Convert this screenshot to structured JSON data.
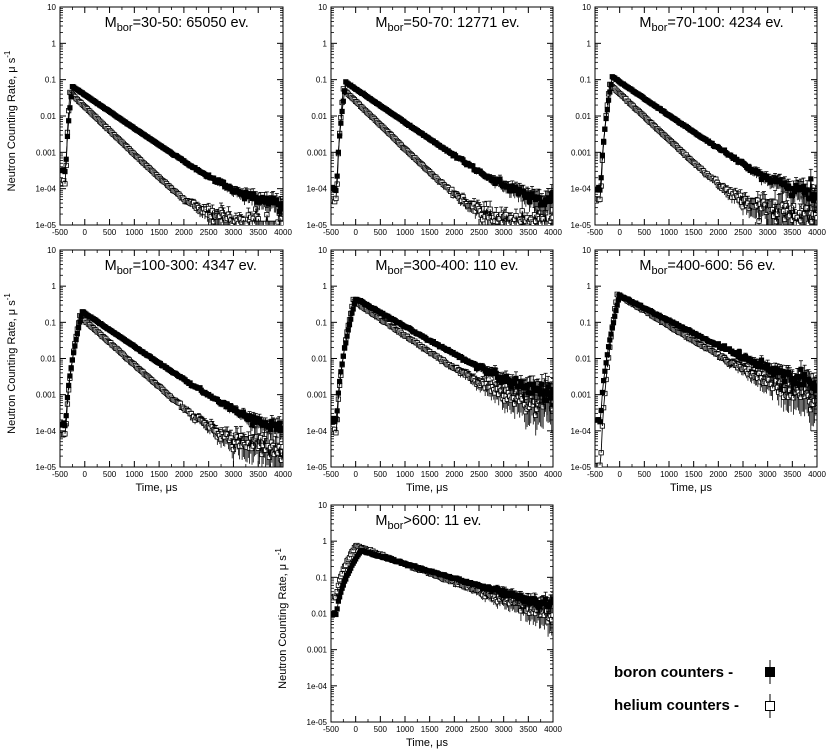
{
  "chart_data": [
    {
      "type": "scatter",
      "title": {
        "sub": "bor",
        "pre": "M",
        "post": "=30-50: 65050 ev."
      },
      "ylabel": "Neutron Counting Rate,  μ s",
      "ylabel_sup": "-1",
      "xlabel": "",
      "yscale": "log",
      "ylim": [
        1e-05,
        10
      ],
      "xlim": [
        -500,
        4000
      ],
      "x_ticks": [
        "-500",
        "0",
        "500",
        "1000",
        "1500",
        "2000",
        "2500",
        "3000",
        "3500",
        "4000"
      ],
      "y_ticks": [
        "1e-05",
        "1e-04",
        "0.001",
        "0.01",
        "0.1",
        "1",
        "10"
      ],
      "series": [
        {
          "marker": "filled-square",
          "peak_x": -250,
          "peak": 0.065,
          "tau": 470,
          "floor": 3e-05,
          "start": 0.0003,
          "noise": 0.15
        },
        {
          "marker": "open-square",
          "peak_x": -300,
          "peak": 0.045,
          "tau": 330,
          "floor": 1.2e-05,
          "start": 0.00015,
          "noise": 0.2
        }
      ]
    },
    {
      "type": "scatter",
      "title": {
        "sub": "bor",
        "pre": "M",
        "post": "=50-70: 12771 ev."
      },
      "ylabel": "",
      "ylabel_sup": "",
      "xlabel": "",
      "yscale": "log",
      "ylim": [
        1e-05,
        10
      ],
      "xlim": [
        -500,
        4000
      ],
      "x_ticks": [
        "-500",
        "0",
        "500",
        "1000",
        "1500",
        "2000",
        "2500",
        "3000",
        "3500",
        "4000"
      ],
      "y_ticks": [
        "1e-05",
        "1e-04",
        "0.001",
        "0.01",
        "0.1",
        "1",
        "10"
      ],
      "series": [
        {
          "marker": "filled-square",
          "peak_x": -200,
          "peak": 0.085,
          "tau": 470,
          "floor": 3e-05,
          "start": 0.0001,
          "noise": 0.2
        },
        {
          "marker": "open-square",
          "peak_x": -250,
          "peak": 0.055,
          "tau": 330,
          "floor": 1.2e-05,
          "start": 5e-05,
          "noise": 0.25
        }
      ]
    },
    {
      "type": "scatter",
      "title": {
        "sub": "bor",
        "pre": "M",
        "post": "=70-100: 4234 ev."
      },
      "ylabel": "",
      "ylabel_sup": "",
      "xlabel": "",
      "yscale": "log",
      "ylim": [
        1e-05,
        10
      ],
      "xlim": [
        -500,
        4000
      ],
      "x_ticks": [
        "-500",
        "0",
        "500",
        "1000",
        "1500",
        "2000",
        "2500",
        "3000",
        "3500",
        "4000"
      ],
      "y_ticks": [
        "1e-05",
        "1e-04",
        "0.001",
        "0.01",
        "0.1",
        "1",
        "10"
      ],
      "series": [
        {
          "marker": "filled-square",
          "peak_x": -150,
          "peak": 0.12,
          "tau": 470,
          "floor": 5e-05,
          "start": 0.0001,
          "noise": 0.25
        },
        {
          "marker": "open-square",
          "peak_x": -200,
          "peak": 0.075,
          "tau": 340,
          "floor": 2e-05,
          "start": 5e-05,
          "noise": 0.3
        }
      ]
    },
    {
      "type": "scatter",
      "title": {
        "sub": "bor",
        "pre": "M",
        "post": "=100-300: 4347 ev."
      },
      "ylabel": "Neutron Counting Rate,  μ s",
      "ylabel_sup": "-1",
      "xlabel": "Time,  μs",
      "yscale": "log",
      "ylim": [
        1e-05,
        10
      ],
      "xlim": [
        -500,
        4000
      ],
      "x_ticks": [
        "-500",
        "0",
        "500",
        "1000",
        "1500",
        "2000",
        "2500",
        "3000",
        "3500",
        "4000"
      ],
      "y_ticks": [
        "1e-05",
        "1e-04",
        "0.001",
        "0.01",
        "0.1",
        "1",
        "10"
      ],
      "series": [
        {
          "marker": "filled-square",
          "peak_x": -50,
          "peak": 0.2,
          "tau": 470,
          "floor": 8e-05,
          "start": 0.00015,
          "noise": 0.2
        },
        {
          "marker": "open-square",
          "peak_x": -100,
          "peak": 0.15,
          "tau": 355,
          "floor": 3e-05,
          "start": 8e-05,
          "noise": 0.3
        }
      ]
    },
    {
      "type": "scatter",
      "title": {
        "sub": "bor",
        "pre": "M",
        "post": "=300-400: 110 ev."
      },
      "ylabel": "",
      "ylabel_sup": "",
      "xlabel": "Time,  μs",
      "yscale": "log",
      "ylim": [
        1e-05,
        10
      ],
      "xlim": [
        -500,
        4000
      ],
      "x_ticks": [
        "-500",
        "0",
        "500",
        "1000",
        "1500",
        "2000",
        "2500",
        "3000",
        "3500",
        "4000"
      ],
      "y_ticks": [
        "1e-05",
        "1e-04",
        "0.001",
        "0.01",
        "0.1",
        "1",
        "10"
      ],
      "series": [
        {
          "marker": "filled-square",
          "peak_x": 0,
          "peak": 0.45,
          "tau": 560,
          "floor": 0.0007,
          "start": 0.0002,
          "noise": 0.35
        },
        {
          "marker": "open-square",
          "peak_x": -50,
          "peak": 0.4,
          "tau": 470,
          "floor": 0.0004,
          "start": 0.0001,
          "noise": 0.5
        }
      ]
    },
    {
      "type": "scatter",
      "title": {
        "sub": "bor",
        "pre": "M",
        "post": "=400-600: 56 ev."
      },
      "ylabel": "",
      "ylabel_sup": "",
      "xlabel": "Time,  μs",
      "yscale": "log",
      "ylim": [
        1e-05,
        10
      ],
      "xlim": [
        -500,
        4000
      ],
      "x_ticks": [
        "-500",
        "0",
        "500",
        "1000",
        "1500",
        "2000",
        "2500",
        "3000",
        "3500",
        "4000"
      ],
      "y_ticks": [
        "1e-05",
        "1e-04",
        "0.001",
        "0.01",
        "0.1",
        "1",
        "10"
      ],
      "series": [
        {
          "marker": "filled-square",
          "peak_x": 0,
          "peak": 0.55,
          "tau": 620,
          "floor": 0.0012,
          "start": 0.0002,
          "noise": 0.35
        },
        {
          "marker": "open-square",
          "peak_x": -50,
          "peak": 0.6,
          "tau": 520,
          "floor": 0.0006,
          "start": 1e-05,
          "noise": 0.5
        }
      ]
    },
    {
      "type": "scatter",
      "title": {
        "sub": "bor",
        "pre": "M",
        "post": ">600: 11 ev."
      },
      "ylabel": "Neutron Counting Rate,  μ s",
      "ylabel_sup": "-1",
      "xlabel": "Time,  μs",
      "yscale": "log",
      "ylim": [
        1e-05,
        10
      ],
      "xlim": [
        -500,
        4000
      ],
      "x_ticks": [
        "-500",
        "0",
        "500",
        "1000",
        "1500",
        "2000",
        "2500",
        "3000",
        "3500",
        "4000"
      ],
      "y_ticks": [
        "1e-05",
        "1e-04",
        "0.001",
        "0.01",
        "0.1",
        "1",
        "10"
      ],
      "series": [
        {
          "marker": "filled-square",
          "peak_x": 100,
          "peak": 0.55,
          "tau": 1050,
          "floor": 0.003,
          "start": 0.01,
          "noise": 0.35
        },
        {
          "marker": "open-square",
          "peak_x": 0,
          "peak": 0.75,
          "tau": 850,
          "floor": 0.002,
          "start": 0.03,
          "noise": 0.5
        }
      ]
    }
  ],
  "legend": [
    {
      "label": "boron counters -",
      "marker": "filled-square"
    },
    {
      "label": "helium counters -",
      "marker": "open-square"
    }
  ]
}
